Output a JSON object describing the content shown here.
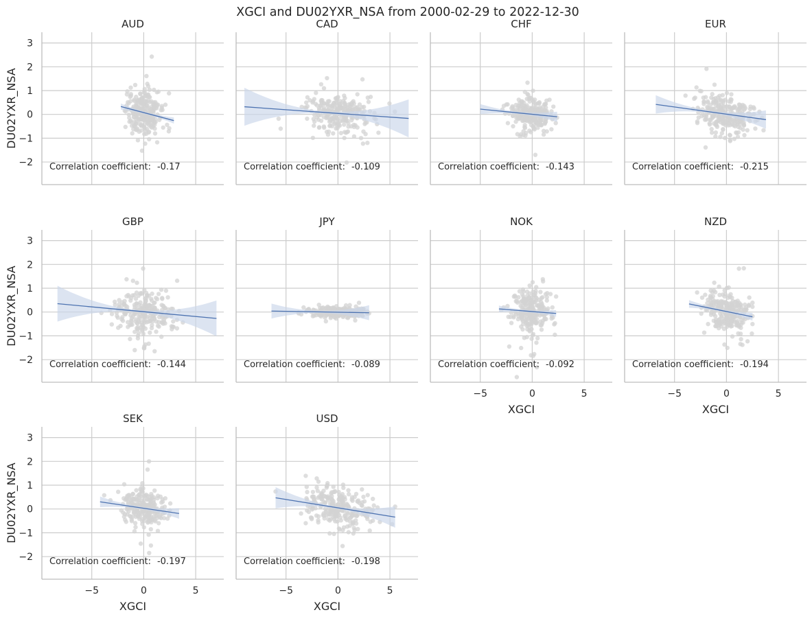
{
  "figure": {
    "title": "XGCI and DU02YXR_NSA from 2000-02-29 to 2022-12-30"
  },
  "colors": {
    "grid": "#cccccc",
    "spine": "#bdbdbd",
    "point": "#d3d3d3",
    "line": "#4c72b0",
    "band": "#c9d6ea",
    "text": "#262626"
  },
  "chart_data": [
    {
      "type": "scatter",
      "title": "AUD",
      "xlabel": "",
      "ylabel": "DU02YXR_NSA",
      "xlim": [
        -9.8,
        7.7
      ],
      "ylim": [
        -2.95,
        3.45
      ],
      "xticks": [
        -5,
        0,
        5
      ],
      "yticks": [
        -2,
        -1,
        0,
        1,
        2,
        3
      ],
      "show_x_tick_labels": false,
      "show_y_tick_labels": true,
      "fit_line": {
        "x": [
          -2.2,
          2.9
        ],
        "y": [
          0.33,
          -0.26
        ]
      },
      "annotation_label": "Correlation coefficient:",
      "annotation_value": "-0.17",
      "point_spread": {
        "x_center": 0.0,
        "x_sd": 0.9,
        "y_sd": 0.45,
        "x_range": [
          -2.3,
          3.1
        ]
      }
    },
    {
      "type": "scatter",
      "title": "CAD",
      "xlabel": "",
      "ylabel": "",
      "xlim": [
        -9.8,
        7.7
      ],
      "ylim": [
        -2.95,
        3.45
      ],
      "xticks": [
        -5,
        0,
        5
      ],
      "yticks": [
        -2,
        -1,
        0,
        1,
        2,
        3
      ],
      "show_x_tick_labels": false,
      "show_y_tick_labels": false,
      "fit_line": {
        "x": [
          -9.0,
          6.8
        ],
        "y": [
          0.32,
          -0.17
        ]
      },
      "annotation_label": "Correlation coefficient:",
      "annotation_value": "-0.109",
      "point_spread": {
        "x_center": 0.0,
        "x_sd": 1.7,
        "y_sd": 0.42,
        "x_range": [
          -9.0,
          6.8
        ]
      }
    },
    {
      "type": "scatter",
      "title": "CHF",
      "xlabel": "",
      "ylabel": "",
      "xlim": [
        -9.8,
        7.7
      ],
      "ylim": [
        -2.95,
        3.45
      ],
      "xticks": [
        -5,
        0,
        5
      ],
      "yticks": [
        -2,
        -1,
        0,
        1,
        2,
        3
      ],
      "show_x_tick_labels": false,
      "show_y_tick_labels": false,
      "fit_line": {
        "x": [
          -5.0,
          2.4
        ],
        "y": [
          0.22,
          -0.1
        ]
      },
      "annotation_label": "Correlation coefficient:",
      "annotation_value": "-0.143",
      "point_spread": {
        "x_center": 0.0,
        "x_sd": 1.1,
        "y_sd": 0.32,
        "x_range": [
          -5.0,
          2.4
        ]
      }
    },
    {
      "type": "scatter",
      "title": "EUR",
      "xlabel": "",
      "ylabel": "",
      "xlim": [
        -9.8,
        7.7
      ],
      "ylim": [
        -2.95,
        3.45
      ],
      "xticks": [
        -5,
        0,
        5
      ],
      "yticks": [
        -2,
        -1,
        0,
        1,
        2,
        3
      ],
      "show_x_tick_labels": false,
      "show_y_tick_labels": false,
      "fit_line": {
        "x": [
          -6.8,
          3.8
        ],
        "y": [
          0.42,
          -0.22
        ]
      },
      "annotation_label": "Correlation coefficient:",
      "annotation_value": "-0.215",
      "point_spread": {
        "x_center": 0.0,
        "x_sd": 1.4,
        "y_sd": 0.38,
        "x_range": [
          -6.8,
          3.8
        ]
      }
    },
    {
      "type": "scatter",
      "title": "GBP",
      "xlabel": "",
      "ylabel": "DU02YXR_NSA",
      "xlim": [
        -9.8,
        7.7
      ],
      "ylim": [
        -2.95,
        3.45
      ],
      "xticks": [
        -5,
        0,
        5
      ],
      "yticks": [
        -2,
        -1,
        0,
        1,
        2,
        3
      ],
      "show_x_tick_labels": false,
      "show_y_tick_labels": true,
      "fit_line": {
        "x": [
          -8.3,
          7.0
        ],
        "y": [
          0.35,
          -0.27
        ]
      },
      "annotation_label": "Correlation coefficient:",
      "annotation_value": "-0.144",
      "point_spread": {
        "x_center": 0.0,
        "x_sd": 1.5,
        "y_sd": 0.45,
        "x_range": [
          -8.3,
          7.0
        ]
      }
    },
    {
      "type": "scatter",
      "title": "JPY",
      "xlabel": "",
      "ylabel": "",
      "xlim": [
        -9.8,
        7.7
      ],
      "ylim": [
        -2.95,
        3.45
      ],
      "xticks": [
        -5,
        0,
        5
      ],
      "yticks": [
        -2,
        -1,
        0,
        1,
        2,
        3
      ],
      "show_x_tick_labels": false,
      "show_y_tick_labels": false,
      "fit_line": {
        "x": [
          -6.4,
          3.0
        ],
        "y": [
          0.04,
          -0.03
        ]
      },
      "annotation_label": "Correlation coefficient:",
      "annotation_value": "-0.089",
      "point_spread": {
        "x_center": 0.0,
        "x_sd": 1.3,
        "y_sd": 0.1,
        "x_range": [
          -6.4,
          3.0
        ]
      }
    },
    {
      "type": "scatter",
      "title": "NOK",
      "xlabel": "XGCI",
      "ylabel": "",
      "xlim": [
        -9.8,
        7.7
      ],
      "ylim": [
        -2.95,
        3.45
      ],
      "xticks": [
        -5,
        0,
        5
      ],
      "yticks": [
        -2,
        -1,
        0,
        1,
        2,
        3
      ],
      "show_x_tick_labels": true,
      "show_y_tick_labels": false,
      "fit_line": {
        "x": [
          -3.2,
          2.3
        ],
        "y": [
          0.13,
          -0.06
        ]
      },
      "annotation_label": "Correlation coefficient:",
      "annotation_value": "-0.092",
      "point_spread": {
        "x_center": 0.0,
        "x_sd": 0.95,
        "y_sd": 0.45,
        "x_range": [
          -3.2,
          2.3
        ]
      }
    },
    {
      "type": "scatter",
      "title": "NZD",
      "xlabel": "XGCI",
      "ylabel": "",
      "xlim": [
        -9.8,
        7.7
      ],
      "ylim": [
        -2.95,
        3.45
      ],
      "xticks": [
        -5,
        0,
        5
      ],
      "yticks": [
        -2,
        -1,
        0,
        1,
        2,
        3
      ],
      "show_x_tick_labels": true,
      "show_y_tick_labels": false,
      "fit_line": {
        "x": [
          -3.6,
          2.5
        ],
        "y": [
          0.34,
          -0.2
        ]
      },
      "annotation_label": "Correlation coefficient:",
      "annotation_value": "-0.194",
      "point_spread": {
        "x_center": 0.0,
        "x_sd": 1.0,
        "y_sd": 0.42,
        "x_range": [
          -3.6,
          2.5
        ]
      }
    },
    {
      "type": "scatter",
      "title": "SEK",
      "xlabel": "XGCI",
      "ylabel": "DU02YXR_NSA",
      "xlim": [
        -9.8,
        7.7
      ],
      "ylim": [
        -2.95,
        3.45
      ],
      "xticks": [
        -5,
        0,
        5
      ],
      "yticks": [
        -2,
        -1,
        0,
        1,
        2,
        3
      ],
      "show_x_tick_labels": true,
      "show_y_tick_labels": true,
      "fit_line": {
        "x": [
          -4.2,
          3.4
        ],
        "y": [
          0.3,
          -0.19
        ]
      },
      "annotation_label": "Correlation coefficient:",
      "annotation_value": "-0.197",
      "point_spread": {
        "x_center": 0.0,
        "x_sd": 1.1,
        "y_sd": 0.38,
        "x_range": [
          -4.2,
          3.4
        ]
      }
    },
    {
      "type": "scatter",
      "title": "USD",
      "xlabel": "XGCI",
      "ylabel": "",
      "xlim": [
        -9.8,
        7.7
      ],
      "ylim": [
        -2.95,
        3.45
      ],
      "xticks": [
        -5,
        0,
        5
      ],
      "yticks": [
        -2,
        -1,
        0,
        1,
        2,
        3
      ],
      "show_x_tick_labels": true,
      "show_y_tick_labels": false,
      "fit_line": {
        "x": [
          -6.0,
          5.5
        ],
        "y": [
          0.47,
          -0.34
        ]
      },
      "annotation_label": "Correlation coefficient:",
      "annotation_value": "-0.198",
      "point_spread": {
        "x_center": 0.0,
        "x_sd": 1.8,
        "y_sd": 0.45,
        "x_range": [
          -6.0,
          5.5
        ]
      }
    }
  ]
}
